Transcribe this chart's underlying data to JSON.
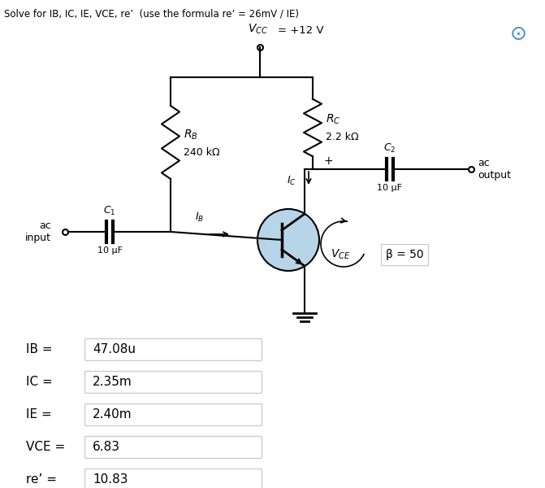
{
  "title": "Solve for IB, IC, IE, VCE, re’  (use the formula re’ = 26mV / IE)",
  "beta_label": "β = 50",
  "ac_input": "ac\ninput",
  "ac_output": "ac\noutput",
  "rb_value": "240 kΩ",
  "rc_value": "2.2 kΩ",
  "c1_value": "10 μF",
  "c2_value": "10 μF",
  "results": [
    {
      "label": "IB = ",
      "value": "47.08u"
    },
    {
      "label": "IC = ",
      "value": "2.35m"
    },
    {
      "label": "IE = ",
      "value": "2.40m"
    },
    {
      "label": "VCE = ",
      "value": "6.83"
    },
    {
      "label": "re’ = ",
      "value": "10.83"
    }
  ],
  "bg_color": "#ffffff",
  "circuit_color": "#000000",
  "transistor_circle_color": "#b8d4e8",
  "box_edge_color": "#cccccc",
  "box_face_color": "#ffffff"
}
